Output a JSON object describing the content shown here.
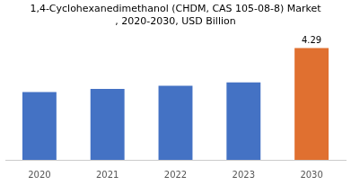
{
  "chart_data": {
    "type": "bar",
    "title": "1,4-Cyclohexanedimethanol (CHDM, CAS 105-08-8) Market\n, 2020-2030, USD Billion",
    "categories": [
      "2020",
      "2021",
      "2022",
      "2023",
      "2030"
    ],
    "values": [
      2.6,
      2.72,
      2.84,
      2.97,
      4.29
    ],
    "colors": [
      "#4472c4",
      "#4472c4",
      "#4472c4",
      "#4472c4",
      "#e07030"
    ],
    "ylim": [
      0,
      4.6
    ],
    "grid": false,
    "tick_labels": "x",
    "annotations": [
      {
        "text": "4.29",
        "x": "2030",
        "y": 4.29
      }
    ]
  }
}
